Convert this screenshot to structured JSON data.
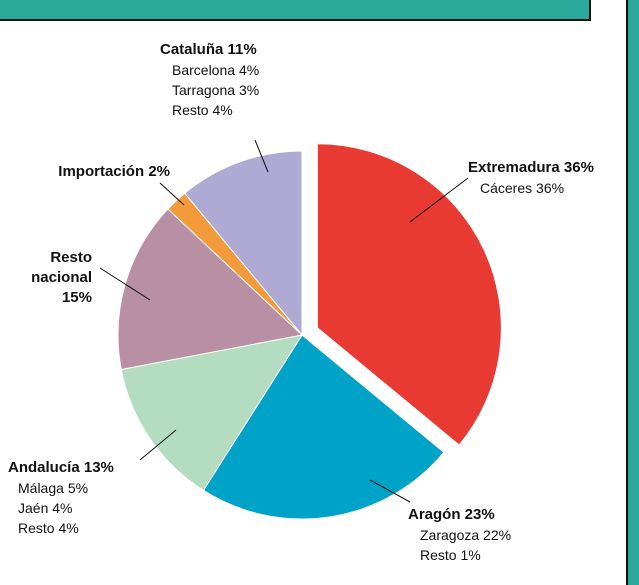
{
  "chart_data": {
    "type": "pie",
    "categories": [
      "Extremadura",
      "Aragón",
      "Andalucía",
      "Resto nacional",
      "Importación",
      "Cataluña"
    ],
    "values": [
      36,
      23,
      13,
      15,
      2,
      11
    ],
    "value_labels": [
      "36%",
      "23%",
      "13%",
      "15%",
      "2%",
      "11%"
    ],
    "colors": [
      "#e83a33",
      "#00a3c8",
      "#b3dcc0",
      "#b88fa3",
      "#f39a3a",
      "#aeaad3"
    ],
    "details": [
      [
        {
          "name": "Cáceres",
          "value": 36,
          "label": "36%"
        }
      ],
      [
        {
          "name": "Zaragoza",
          "value": 22,
          "label": "22%"
        },
        {
          "name": "Resto",
          "value": 1,
          "label": "1%"
        }
      ],
      [
        {
          "name": "Málaga",
          "value": 5,
          "label": "5%"
        },
        {
          "name": "Jaén",
          "value": 4,
          "label": "4%"
        },
        {
          "name": "Resto",
          "value": 4,
          "label": "4%"
        }
      ],
      [],
      [],
      [
        {
          "name": "Barcelona",
          "value": 4,
          "label": "4%"
        },
        {
          "name": "Tarragona",
          "value": 3,
          "label": "3%"
        },
        {
          "name": "Resto",
          "value": 4,
          "label": "4%"
        }
      ]
    ]
  }
}
